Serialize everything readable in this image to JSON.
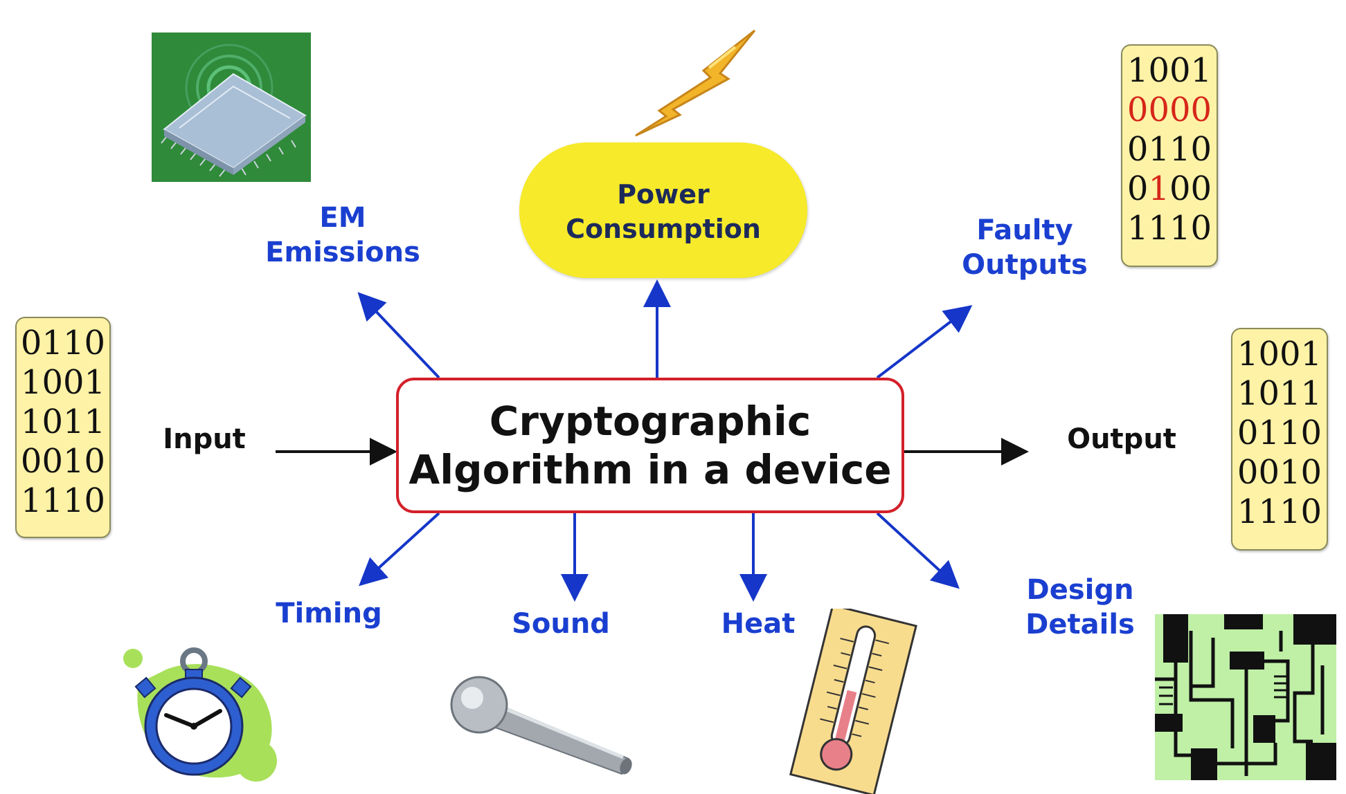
{
  "title": {
    "line1": "Cryptographic",
    "line2": "Algorithm in a device"
  },
  "labels": {
    "power_line1": "Power",
    "power_line2": "Consumption",
    "em_line1": "EM",
    "em_line2": "Emissions",
    "faulty_line1": "Faulty",
    "faulty_line2": "Outputs",
    "input": "Input",
    "output": "Output",
    "timing": "Timing",
    "sound": "Sound",
    "heat": "Heat",
    "design_line1": "Design",
    "design_line2": "Details"
  },
  "input_bits": [
    "0110",
    "1001",
    "1011",
    "0010",
    "1110"
  ],
  "output_bits": [
    "1001",
    "1011",
    "0110",
    "0010",
    "1110"
  ],
  "faulty_bits": {
    "row1": "1001",
    "row2": "0000",
    "row3": "0110",
    "row4_a": "0",
    "row4_b": "1",
    "row4_c": "00",
    "row5": "1110"
  },
  "icons": [
    "chip-icon",
    "lightning-icon",
    "stopwatch-icon",
    "microphone-icon",
    "thermometer-icon",
    "circuit-board-icon"
  ],
  "colors": {
    "label_blue": "#1a3fd0",
    "box_border": "#d3202a",
    "power_fill": "#f6ea2a",
    "bits_fill": "#fdf2a6",
    "fault_red": "#d6261a"
  }
}
